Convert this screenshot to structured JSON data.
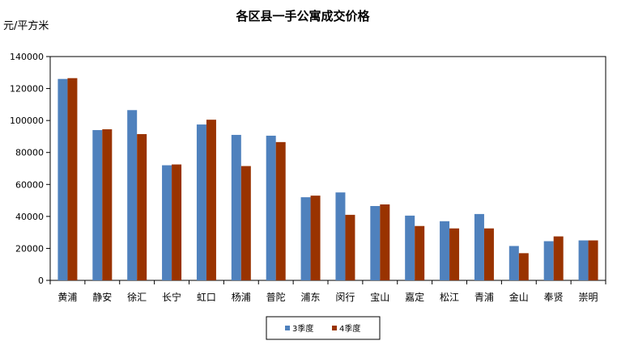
{
  "chart_data": {
    "type": "bar",
    "title": "各区县一手公寓成交价格",
    "ylabel": "元/平方米",
    "xlabel": "",
    "ylim": [
      0,
      140000
    ],
    "yticks": [
      0,
      20000,
      40000,
      60000,
      80000,
      100000,
      120000,
      140000
    ],
    "grid": false,
    "legend_position": "bottom-center",
    "categories": [
      "黄浦",
      "静安",
      "徐汇",
      "长宁",
      "虹口",
      "杨浦",
      "普陀",
      "浦东",
      "闵行",
      "宝山",
      "嘉定",
      "松江",
      "青浦",
      "金山",
      "奉贤",
      "崇明"
    ],
    "series": [
      {
        "name": "3季度",
        "color": "#4f81bd",
        "values": [
          126000,
          94000,
          106500,
          72000,
          97500,
          91000,
          90500,
          52000,
          55000,
          46500,
          40500,
          37000,
          41500,
          21500,
          24500,
          25000
        ]
      },
      {
        "name": "4季度",
        "color": "#993300",
        "values": [
          126500,
          94500,
          91500,
          72500,
          100500,
          71500,
          86500,
          53000,
          41000,
          47500,
          34000,
          32500,
          32500,
          17000,
          27500,
          25000
        ]
      }
    ]
  }
}
